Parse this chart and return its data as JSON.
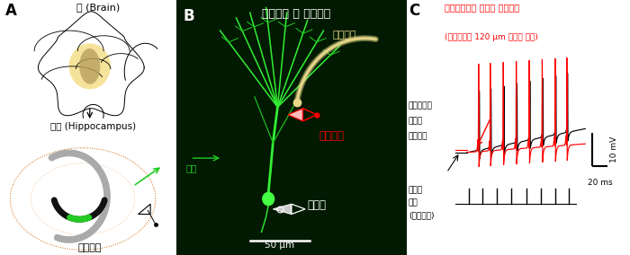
{
  "panel_A_label": "A",
  "panel_B_label": "B",
  "panel_C_label": "C",
  "brain_label": "뇌 (Brain)",
  "hippocampus_label": "해마 (Hippocampus)",
  "dentate_label": "치아이랑",
  "panel_B_title": "치아이랑 내 과립세포",
  "dendrite_label": "수상돌기",
  "soma_label": "세포체",
  "external_label": "외부정돈",
  "zoom_label": "확대",
  "scale_label": "50 μm",
  "red_trace_label": "수상돌기에서 기록한 전기신호",
  "red_trace_sub": "(세포체에서 120 μm 떨어진 지점)",
  "black_trace_label_line1": "세포체에서",
  "black_trace_label_line2": "기록한",
  "black_trace_label_line3": "전기신호",
  "synapse_label_line1": "시냅스",
  "synapse_label_line2": "자극",
  "synapse_label_line3": "(외부신호)",
  "scale_bar_v": "10 mV",
  "scale_bar_h": "20 ms",
  "bg_color": "#ffffff",
  "panel_B_bg": "#011a01",
  "red_color": "#ff0000",
  "black_color": "#000000"
}
